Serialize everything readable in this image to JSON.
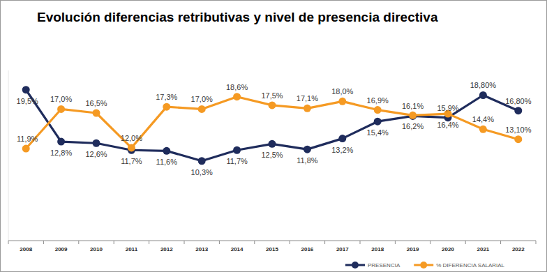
{
  "chart_data": {
    "type": "line",
    "title": "Evolución diferencias retributivas y nivel de presencia directiva",
    "categories": [
      "2008",
      "2009",
      "2010",
      "2011",
      "2012",
      "2013",
      "2014",
      "2015",
      "2016",
      "2017",
      "2018",
      "2019",
      "2020",
      "2021",
      "2022"
    ],
    "series": [
      {
        "name": "PRESENCIA",
        "color": "#1f2c5c",
        "marker": "circle",
        "line_style": "solid",
        "values": [
          19.5,
          12.8,
          12.6,
          11.7,
          11.6,
          10.3,
          11.7,
          12.5,
          11.8,
          13.2,
          15.4,
          16.1,
          15.9,
          18.8,
          16.8
        ],
        "value_labels": [
          "19,5%",
          "12,8%",
          "12,6%",
          "11,7%",
          "11,6%",
          "10,3%",
          "11,7%",
          "12,5%",
          "11,8%",
          "13,2%",
          "15,4%",
          "16,1%",
          "15,9%",
          "18,80%",
          "16,80%"
        ]
      },
      {
        "name": "% DIFERENCIA SALARIAL",
        "color": "#f59a23",
        "marker": "circle",
        "line_style": "solid",
        "values": [
          11.9,
          17.0,
          16.5,
          12.0,
          17.3,
          17.0,
          18.6,
          17.5,
          17.1,
          18.0,
          16.9,
          16.2,
          16.4,
          14.4,
          13.1
        ],
        "value_labels": [
          "11,9%",
          "17,0%",
          "16,5%",
          "12,0%",
          "17,3%",
          "17,0%",
          "18,6%",
          "17,5%",
          "17,1%",
          "18,0%",
          "16,9%",
          "16,2%",
          "16,4%",
          "14,4%",
          "13,10%"
        ]
      }
    ],
    "ylim": [
      0,
      22
    ],
    "grid": false,
    "legend": "bottom-right",
    "data_labels": true,
    "tick_labels": "x"
  }
}
